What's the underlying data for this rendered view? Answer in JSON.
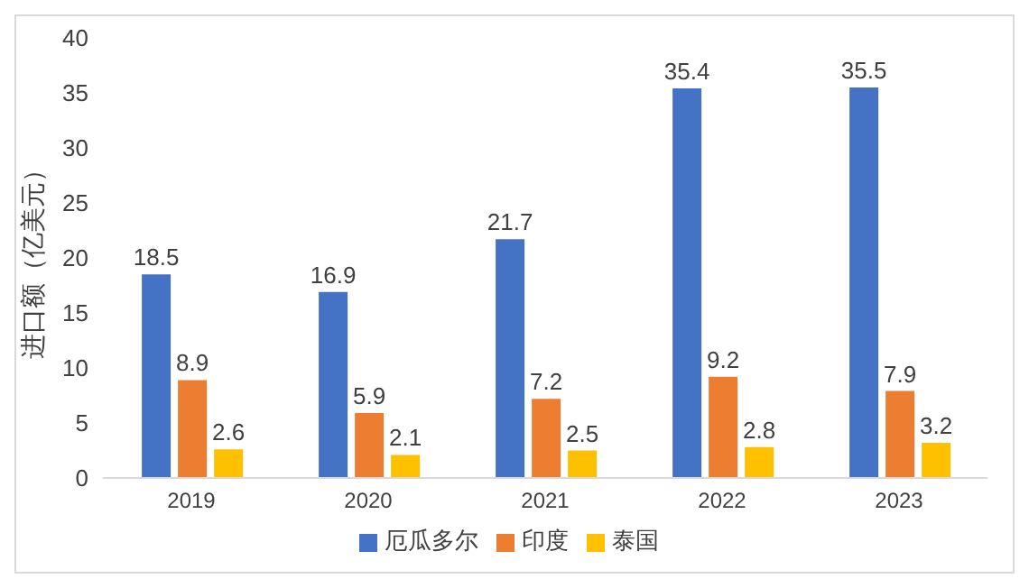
{
  "chart_data": {
    "type": "bar",
    "ylabel": "进口额（亿美元）",
    "categories": [
      "2019",
      "2020",
      "2021",
      "2022",
      "2023"
    ],
    "series": [
      {
        "name": "厄瓜多尔",
        "color": "#4472c4",
        "values": [
          18.5,
          16.9,
          21.7,
          35.4,
          35.5
        ]
      },
      {
        "name": "印度",
        "color": "#ed7d31",
        "values": [
          8.9,
          5.9,
          7.2,
          9.2,
          7.9
        ]
      },
      {
        "name": "泰国",
        "color": "#ffc000",
        "values": [
          2.6,
          2.1,
          2.5,
          2.8,
          3.2
        ]
      }
    ],
    "ylim": [
      0,
      40
    ],
    "yticks": [
      0,
      5,
      10,
      15,
      20,
      25,
      30,
      35,
      40
    ],
    "grid": false,
    "legend": "bottom",
    "data_labels": true
  }
}
